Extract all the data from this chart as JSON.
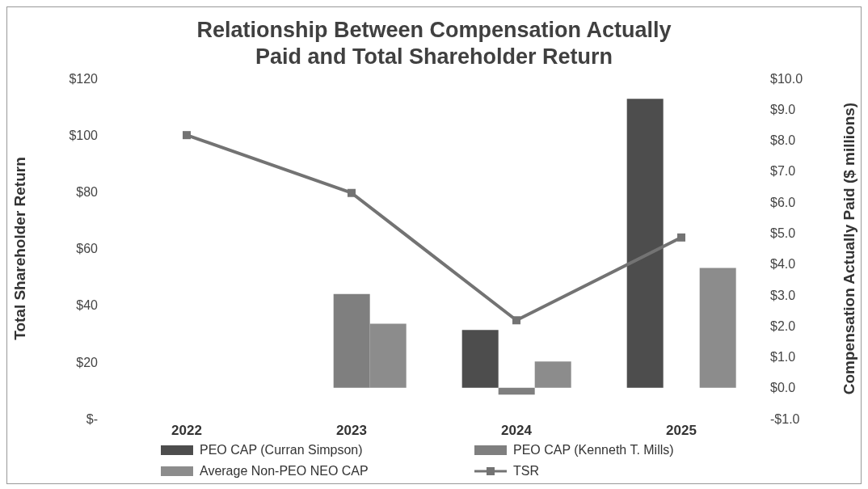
{
  "chart_data": {
    "type": "bar",
    "title": "Relationship Between Compensation Actually Paid and Total Shareholder Return",
    "ylabel": "Total Shareholder Return",
    "y2label": "Compensation Actually Paid ($ millions)",
    "categories": [
      "2022",
      "2023",
      "2024",
      "2025"
    ],
    "series": [
      {
        "name": "PEO CAP (Curran Simpson)",
        "color": "#4d4d4d",
        "axis": "y2",
        "values": [
          null,
          null,
          1.87,
          9.34
        ]
      },
      {
        "name": "PEO CAP (Kenneth T. Mills)",
        "color": "#7f7f7f",
        "axis": "y2",
        "values": [
          null,
          3.03,
          -0.22,
          null
        ]
      },
      {
        "name": "Average Non-PEO NEO CAP",
        "color": "#8c8c8c",
        "axis": "y2",
        "values": [
          null,
          2.07,
          0.85,
          3.87
        ]
      },
      {
        "name": "TSR",
        "type": "line",
        "color": "#737373",
        "marker": "square",
        "values": [
          100,
          79.6,
          34.7,
          63.9
        ]
      }
    ],
    "ylim": [
      0,
      120
    ],
    "yticks": [
      {
        "value": 0,
        "label": "$-"
      },
      {
        "value": 20,
        "label": "$20"
      },
      {
        "value": 40,
        "label": "$40"
      },
      {
        "value": 60,
        "label": "$60"
      },
      {
        "value": 80,
        "label": "$80"
      },
      {
        "value": 100,
        "label": "$100"
      },
      {
        "value": 120,
        "label": "$120"
      }
    ],
    "y2lim": [
      -1,
      10
    ],
    "y2ticks": [
      {
        "value": -1,
        "label": "-$1.0"
      },
      {
        "value": 0,
        "label": "$0.0"
      },
      {
        "value": 1,
        "label": "$1.0"
      },
      {
        "value": 2,
        "label": "$2.0"
      },
      {
        "value": 3,
        "label": "$3.0"
      },
      {
        "value": 4,
        "label": "$4.0"
      },
      {
        "value": 5,
        "label": "$5.0"
      },
      {
        "value": 6,
        "label": "$6.0"
      },
      {
        "value": 7,
        "label": "$7.0"
      },
      {
        "value": 8,
        "label": "$8.0"
      },
      {
        "value": 9,
        "label": "$9.0"
      },
      {
        "value": 10,
        "label": "$10.0"
      }
    ],
    "grid": false,
    "legend": "bottom"
  }
}
